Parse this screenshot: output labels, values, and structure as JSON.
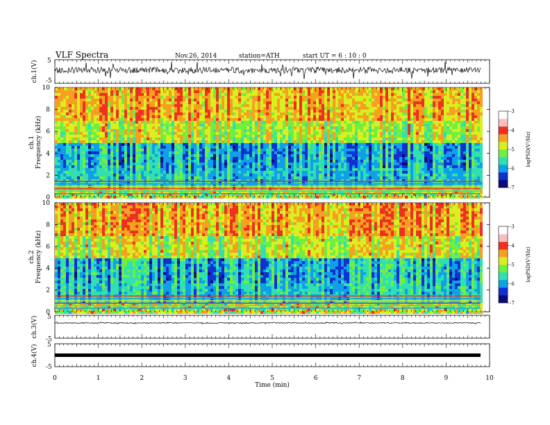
{
  "header": {
    "title": "VLF  Spectra",
    "date": "Nov.26, 2014",
    "station": "station=ATH",
    "start": "start  UT  =   6  : 10 : 0"
  },
  "colors": {
    "colormap": [
      "#0a0a7a",
      "#1030d0",
      "#10a0e8",
      "#30e0b0",
      "#70ef40",
      "#d8ef20",
      "#f5a020",
      "#ee3020",
      "#ffffff"
    ],
    "axis": "#000000",
    "background": "#ffffff"
  },
  "chart_data": [
    {
      "type": "line",
      "name": "ch1-waveform",
      "ylabel": "ch.1(V)",
      "ylim": [
        -5,
        5
      ],
      "yticks": [
        "5",
        "-5"
      ],
      "description": "noisy waveform around 0 V"
    },
    {
      "type": "heatmap",
      "name": "ch1-spectrogram",
      "ylabel_line1": "ch.1",
      "ylabel_line2": "Frequency  (kHz)",
      "ylim": [
        0,
        10
      ],
      "yticks": [
        "0",
        "2",
        "4",
        "6",
        "8",
        "10"
      ],
      "colorbar": {
        "label": "logPSD(V²/Hz)",
        "range": [
          -7,
          -3
        ],
        "ticks": [
          "-3",
          "-4",
          "-5",
          "-6",
          "-7"
        ]
      }
    },
    {
      "type": "heatmap",
      "name": "ch2-spectrogram",
      "ylabel_line1": "ch.2",
      "ylabel_line2": "Frequency  (kHz)",
      "ylim": [
        0,
        10
      ],
      "yticks": [
        "0",
        "2",
        "4",
        "6",
        "8",
        "10"
      ],
      "colorbar": {
        "label": "logPSD(V²/Hz)",
        "range": [
          -7,
          -3
        ],
        "ticks": [
          "-3",
          "-4",
          "-5",
          "-6",
          "-7"
        ]
      }
    },
    {
      "type": "line",
      "name": "ch3-waveform",
      "ylabel": "ch.3(V)",
      "ylim": [
        -5,
        5
      ],
      "yticks": [
        "5",
        "-5"
      ]
    },
    {
      "type": "line",
      "name": "ch4-waveform",
      "ylabel": "ch.4(V)",
      "ylim": [
        -5,
        5
      ],
      "yticks": [
        "5",
        "-5"
      ]
    }
  ],
  "xaxis": {
    "label": "Time  (min)",
    "xlim": [
      0,
      10
    ],
    "ticks": [
      "0",
      "1",
      "2",
      "3",
      "4",
      "5",
      "6",
      "7",
      "8",
      "9",
      "10"
    ]
  }
}
